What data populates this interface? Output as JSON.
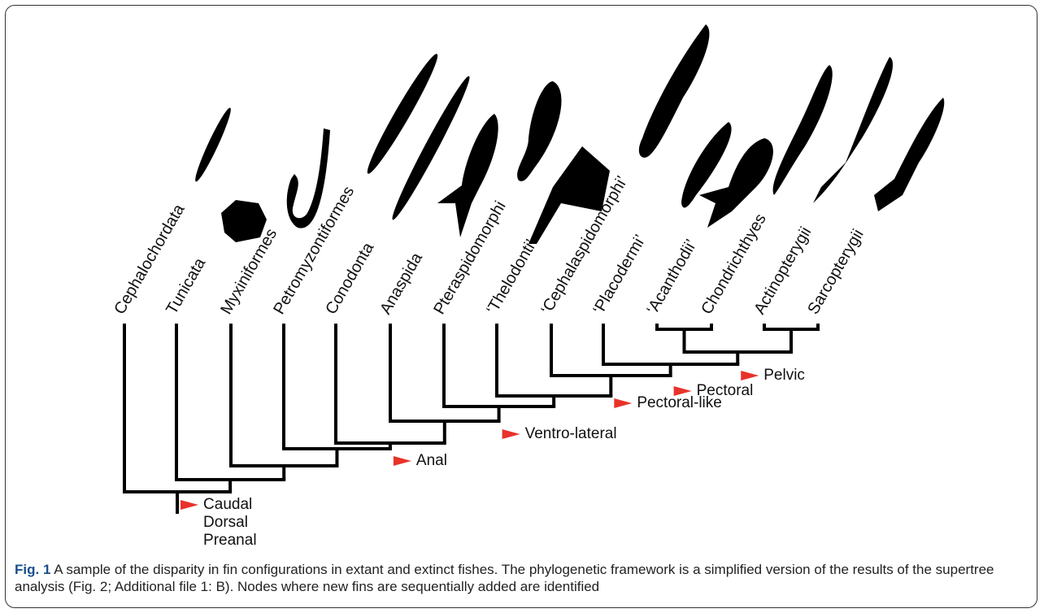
{
  "taxa": [
    "Cephalochordata",
    "Tunicata",
    "Myxiniformes",
    "Petromyzontiformes",
    "Conodonta",
    "Anaspida",
    "Pteraspidomorphi",
    "‘Thelodonti’",
    "‘Cephalaspidomorphi’",
    "‘Placodermi’",
    "‘Acanthodii’",
    "Chondrichthyes",
    "Actinopterygii",
    "Sarcopterygii"
  ],
  "node_labels": {
    "root": [
      "Caudal",
      "Dorsal",
      "Preanal"
    ],
    "anal": "Anal",
    "ventro_lateral": "Ventro-lateral",
    "pectoral_like": "Pectoral-like",
    "pectoral": "Pectoral",
    "pelvic": "Pelvic"
  },
  "caption": {
    "label": "Fig. 1",
    "text": "A sample of the disparity in fin configurations in extant and extinct fishes. The phylogenetic framework is a simplified version of the results of the supertree analysis (Fig. 2; Additional file 1: B). Nodes where new fins are sequentially added are identified"
  }
}
